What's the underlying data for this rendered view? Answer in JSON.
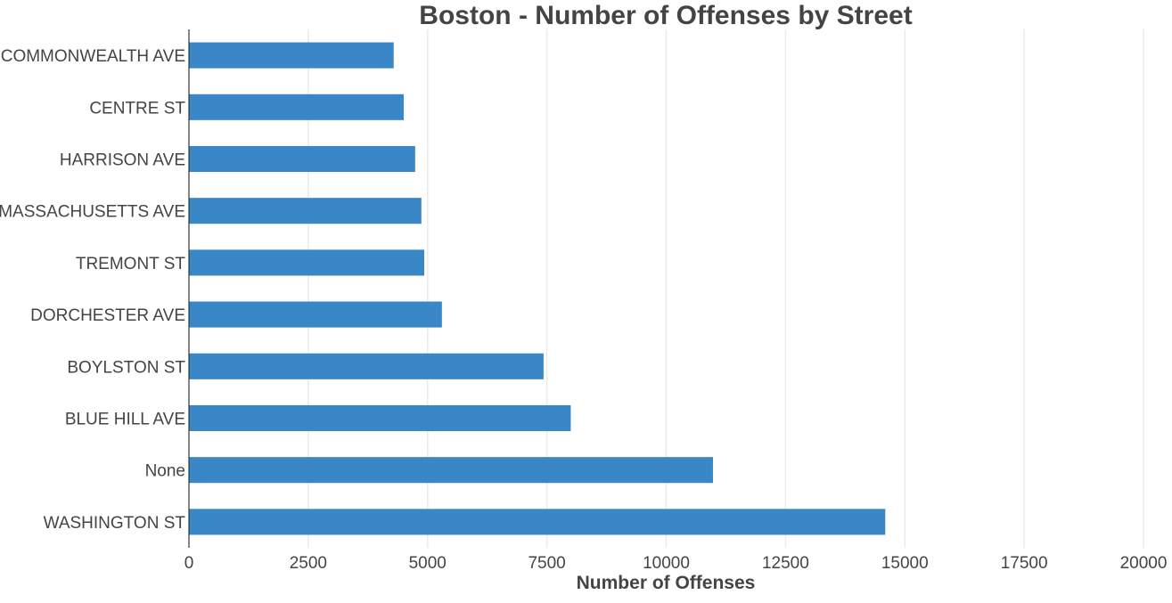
{
  "chart_data": {
    "type": "bar",
    "orientation": "horizontal",
    "title": "Boston - Number of Offenses by Street",
    "xlabel": "Number of Offenses",
    "ylabel": "",
    "categories": [
      "WASHINGTON ST",
      "None",
      "BLUE HILL AVE",
      "BOYLSTON ST",
      "DORCHESTER AVE",
      "TREMONT ST",
      "MASSACHUSETTS AVE",
      "HARRISON AVE",
      "CENTRE ST",
      "COMMONWEALTH AVE"
    ],
    "values": [
      14590,
      10980,
      8000,
      7430,
      5300,
      4930,
      4870,
      4740,
      4500,
      4290
    ],
    "xlim": [
      0,
      20000
    ],
    "xticks": [
      "0",
      "2500",
      "5000",
      "7500",
      "10000",
      "12500",
      "15000",
      "17500",
      "20000"
    ],
    "grid": "vertical",
    "bar_color": "#3a87c8",
    "legend": "none"
  }
}
